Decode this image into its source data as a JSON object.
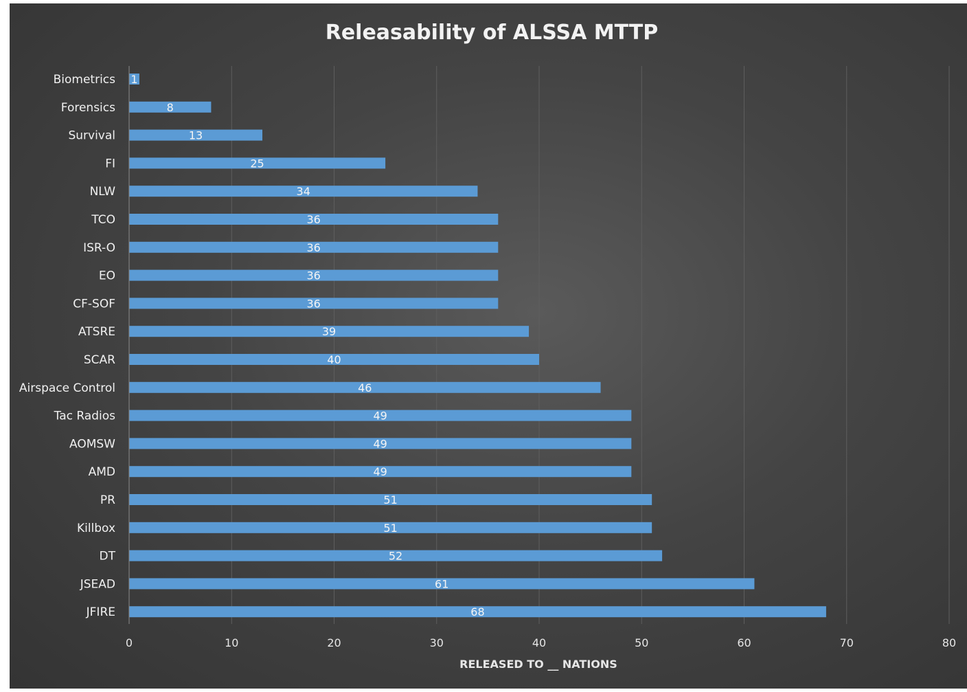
{
  "chart_data": {
    "type": "bar",
    "orientation": "horizontal",
    "title": "Releasability of ALSSA MTTP",
    "xlabel": "RELEASED TO __ NATIONS",
    "ylabel": "",
    "categories": [
      "Biometrics",
      "Forensics",
      "Survival",
      "FI",
      "NLW",
      "TCO",
      "ISR-O",
      "EO",
      "CF-SOF",
      "ATSRE",
      "SCAR",
      "Airspace Control",
      "Tac Radios",
      "AOMSW",
      "AMD",
      "PR",
      "Killbox",
      "DT",
      "JSEAD",
      "JFIRE"
    ],
    "values": [
      1,
      8,
      13,
      25,
      34,
      36,
      36,
      36,
      36,
      39,
      40,
      46,
      49,
      49,
      49,
      51,
      51,
      52,
      61,
      68
    ],
    "xlim": [
      0,
      80
    ],
    "xticks": [
      0,
      10,
      20,
      30,
      40,
      50,
      60,
      70,
      80
    ],
    "grid": true,
    "data_labels": true,
    "legend": "none",
    "colors": {
      "bar": "#5b9bd5",
      "background": "#404040",
      "grid": "#5e5e5e",
      "text": "#f0f0f0"
    }
  }
}
